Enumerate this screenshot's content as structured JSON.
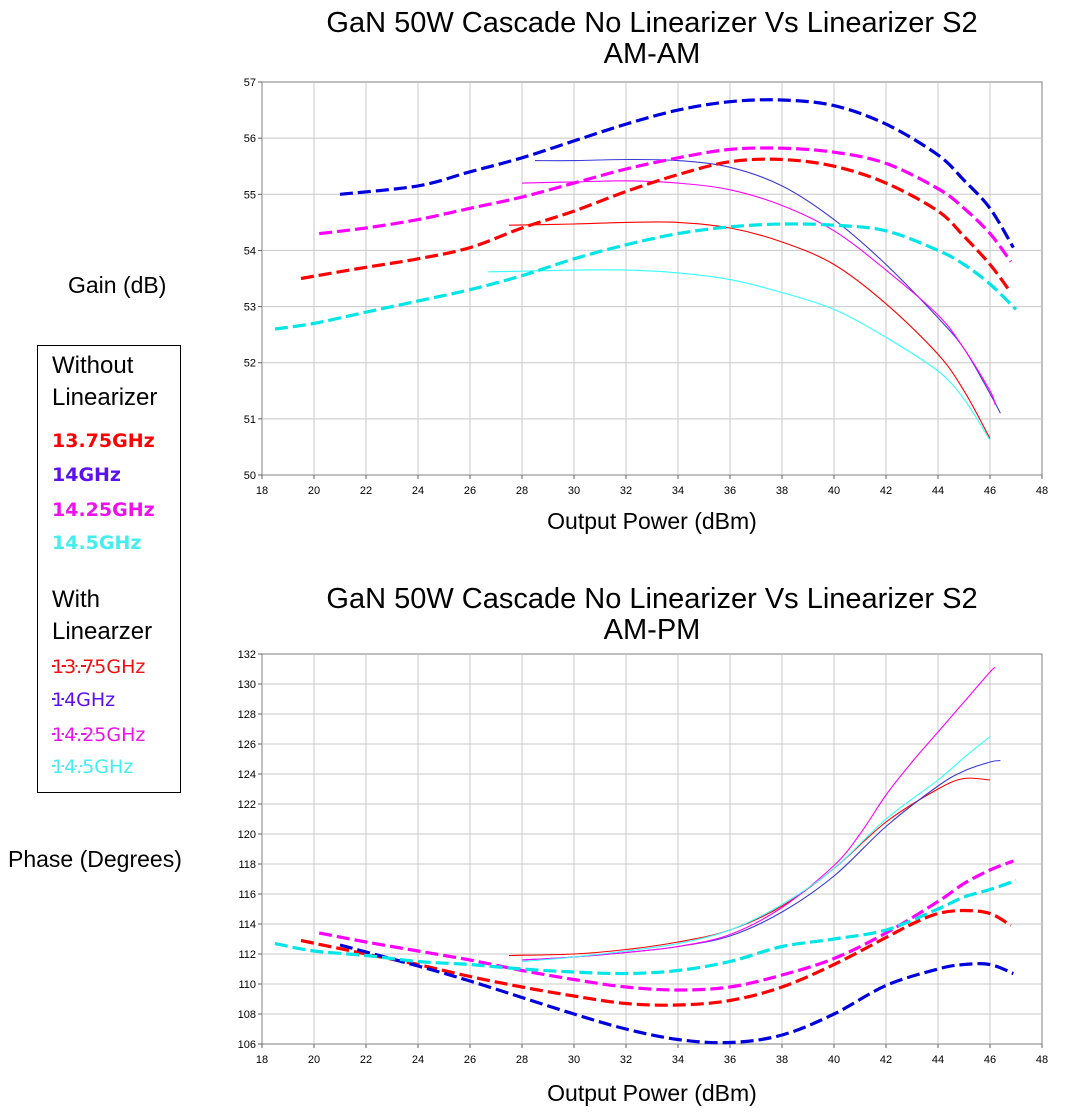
{
  "chart_data": [
    {
      "type": "line",
      "title": "GaN 50W Cascade No Linearizer Vs Linearizer S2",
      "subtitle": "AM-AM",
      "xlabel": "Output Power (dBm)",
      "ylabel": "Gain (dB)",
      "xlim": [
        18,
        48
      ],
      "ylim": [
        50,
        57
      ],
      "xticks": [
        18,
        20,
        22,
        24,
        26,
        28,
        30,
        32,
        34,
        36,
        38,
        40,
        42,
        44,
        46,
        48
      ],
      "yticks": [
        50,
        51,
        52,
        53,
        54,
        55,
        56,
        57
      ],
      "grid": true,
      "series": [
        {
          "name": "13.75GHz",
          "group": "Without Linearizer",
          "style": "solid",
          "color": "#ff0000",
          "x": [
            27.5,
            30,
            32,
            34,
            36,
            38,
            40,
            42,
            44,
            45,
            46
          ],
          "y": [
            54.45,
            54.47,
            54.5,
            54.5,
            54.4,
            54.15,
            53.75,
            53.05,
            52.15,
            51.5,
            50.65
          ]
        },
        {
          "name": "14GHz",
          "group": "Without Linearizer",
          "style": "solid",
          "color": "#3b3bd6",
          "x": [
            28.5,
            30,
            32,
            34,
            36,
            38,
            40,
            42,
            44,
            45,
            46,
            46.4
          ],
          "y": [
            55.6,
            55.6,
            55.62,
            55.6,
            55.48,
            55.15,
            54.55,
            53.75,
            52.8,
            52.25,
            51.45,
            51.1
          ]
        },
        {
          "name": "14.25GHz",
          "group": "Without Linearizer",
          "style": "solid",
          "color": "#ff00ff",
          "x": [
            28,
            30,
            32,
            34,
            36,
            38,
            40,
            42,
            44,
            45,
            46,
            46.2
          ],
          "y": [
            55.2,
            55.22,
            55.24,
            55.2,
            55.08,
            54.8,
            54.35,
            53.65,
            52.85,
            52.25,
            51.5,
            51.25
          ]
        },
        {
          "name": "14.5GHz",
          "group": "Without Linearizer",
          "style": "solid",
          "color": "#33ffff",
          "x": [
            26.7,
            28,
            30,
            32,
            34,
            36,
            38,
            40,
            42,
            44,
            45,
            46
          ],
          "y": [
            53.62,
            53.63,
            53.65,
            53.65,
            53.6,
            53.48,
            53.25,
            52.95,
            52.45,
            51.85,
            51.35,
            50.62
          ]
        },
        {
          "name": "13.75GHz",
          "group": "With Linearzer",
          "style": "dashed",
          "color": "#ff0000",
          "x": [
            19.5,
            22,
            24,
            26,
            28,
            30,
            32,
            34,
            36,
            38,
            40,
            42,
            44,
            45,
            46,
            46.8
          ],
          "y": [
            53.5,
            53.7,
            53.85,
            54.05,
            54.4,
            54.7,
            55.05,
            55.35,
            55.58,
            55.62,
            55.5,
            55.2,
            54.7,
            54.25,
            53.75,
            53.25
          ]
        },
        {
          "name": "14GHz",
          "group": "With Linearzer",
          "style": "dashed",
          "color": "#0000dd",
          "x": [
            21,
            24,
            26,
            28,
            30,
            32,
            34,
            36,
            38,
            40,
            42,
            44,
            45,
            46,
            46.9
          ],
          "y": [
            55.0,
            55.15,
            55.4,
            55.65,
            55.95,
            56.25,
            56.5,
            56.65,
            56.68,
            56.58,
            56.25,
            55.7,
            55.25,
            54.75,
            54.05
          ]
        },
        {
          "name": "14.25GHz",
          "group": "With Linearzer",
          "style": "dashed",
          "color": "#ff00ff",
          "x": [
            20.2,
            22,
            24,
            26,
            28,
            30,
            32,
            34,
            36,
            38,
            40,
            42,
            44,
            45,
            46,
            46.8
          ],
          "y": [
            54.3,
            54.4,
            54.55,
            54.75,
            54.95,
            55.2,
            55.45,
            55.65,
            55.8,
            55.82,
            55.75,
            55.55,
            55.1,
            54.75,
            54.3,
            53.8
          ]
        },
        {
          "name": "14.5GHz",
          "group": "With Linearzer",
          "style": "dashed",
          "color": "#00e5e5",
          "x": [
            18.5,
            20,
            22,
            24,
            26,
            28,
            30,
            32,
            34,
            36,
            38,
            40,
            42,
            44,
            45,
            46,
            47
          ],
          "y": [
            52.6,
            52.7,
            52.9,
            53.1,
            53.3,
            53.55,
            53.85,
            54.1,
            54.3,
            54.42,
            54.47,
            54.45,
            54.35,
            54.0,
            53.75,
            53.4,
            52.95
          ]
        }
      ]
    },
    {
      "type": "line",
      "title": "GaN 50W Cascade No Linearizer Vs Linearizer S2",
      "subtitle": "AM-PM",
      "xlabel": "Output Power (dBm)",
      "ylabel": "Phase (Degrees)",
      "xlim": [
        18,
        48
      ],
      "ylim": [
        106,
        132
      ],
      "xticks": [
        18,
        20,
        22,
        24,
        26,
        28,
        30,
        32,
        34,
        36,
        38,
        40,
        42,
        44,
        46,
        48
      ],
      "yticks": [
        106,
        108,
        110,
        112,
        114,
        116,
        118,
        120,
        122,
        124,
        126,
        128,
        130,
        132
      ],
      "grid": true,
      "series": [
        {
          "name": "13.75GHz",
          "group": "Without Linearizer",
          "style": "solid",
          "color": "#ff0000",
          "x": [
            27.5,
            30,
            32,
            34,
            36,
            38,
            40,
            42,
            44,
            45,
            46
          ],
          "y": [
            111.9,
            112.0,
            112.3,
            112.8,
            113.6,
            115.2,
            117.7,
            120.8,
            123.0,
            123.7,
            123.6
          ]
        },
        {
          "name": "14GHz",
          "group": "Without Linearizer",
          "style": "solid",
          "color": "#3b3bd6",
          "x": [
            28,
            30,
            32,
            34,
            36,
            38,
            40,
            42,
            44,
            45,
            46,
            46.4
          ],
          "y": [
            111.6,
            111.8,
            112.1,
            112.5,
            113.2,
            114.8,
            117.2,
            120.5,
            123.2,
            124.2,
            124.8,
            124.9
          ]
        },
        {
          "name": "14.25GHz",
          "group": "Without Linearizer",
          "style": "solid",
          "color": "#ff00ff",
          "x": [
            28,
            30,
            32,
            34,
            36,
            38,
            40,
            41,
            42,
            43,
            44,
            45,
            46,
            46.2
          ],
          "y": [
            111.6,
            111.8,
            112.1,
            112.5,
            113.3,
            115.1,
            117.9,
            120.0,
            122.6,
            124.8,
            126.8,
            128.8,
            130.8,
            131.1
          ]
        },
        {
          "name": "14.5GHz",
          "group": "Without Linearizer",
          "style": "solid",
          "color": "#33ffff",
          "x": [
            28,
            30,
            32,
            34,
            36,
            38,
            40,
            42,
            44,
            45,
            46
          ],
          "y": [
            111.5,
            111.8,
            112.2,
            112.7,
            113.6,
            115.3,
            117.7,
            121.0,
            123.6,
            125.1,
            126.5
          ]
        },
        {
          "name": "13.75GHz",
          "group": "With Linearzer",
          "style": "dashed",
          "color": "#ff0000",
          "x": [
            19.5,
            22,
            24,
            26,
            28,
            30,
            32,
            34,
            36,
            38,
            40,
            42,
            43,
            44,
            45,
            46,
            46.8
          ],
          "y": [
            112.9,
            112.0,
            111.3,
            110.5,
            109.8,
            109.2,
            108.7,
            108.6,
            108.9,
            109.8,
            111.3,
            113.1,
            114.0,
            114.7,
            114.9,
            114.7,
            113.9
          ]
        },
        {
          "name": "14GHz",
          "group": "With Linearzer",
          "style": "dashed",
          "color": "#0000dd",
          "x": [
            21,
            24,
            26,
            28,
            30,
            32,
            34,
            36,
            38,
            40,
            42,
            44,
            45,
            46,
            46.9
          ],
          "y": [
            112.6,
            111.2,
            110.2,
            109.1,
            108.0,
            107.0,
            106.3,
            106.1,
            106.6,
            108.0,
            109.9,
            111.0,
            111.3,
            111.3,
            110.7
          ]
        },
        {
          "name": "14.25GHz",
          "group": "With Linearzer",
          "style": "dashed",
          "color": "#ff00ff",
          "x": [
            20.2,
            22,
            24,
            26,
            28,
            30,
            32,
            34,
            36,
            38,
            40,
            42,
            44,
            45,
            46,
            46.9
          ],
          "y": [
            113.4,
            112.8,
            112.2,
            111.6,
            110.9,
            110.3,
            109.8,
            109.6,
            109.8,
            110.6,
            111.7,
            113.4,
            115.5,
            116.7,
            117.6,
            118.2
          ]
        },
        {
          "name": "14.5GHz",
          "group": "With Linearzer",
          "style": "dashed",
          "color": "#00e5e5",
          "x": [
            18.5,
            20,
            22,
            24,
            26,
            28,
            30,
            32,
            34,
            36,
            38,
            40,
            42,
            44,
            45,
            46,
            47
          ],
          "y": [
            112.7,
            112.2,
            111.9,
            111.5,
            111.3,
            111.0,
            110.8,
            110.7,
            110.9,
            111.5,
            112.5,
            113.0,
            113.6,
            115.0,
            115.8,
            116.3,
            116.9
          ]
        }
      ]
    }
  ],
  "legend": {
    "heading_without": [
      "Without",
      "Linearizer"
    ],
    "heading_with": [
      "With",
      "Linearzer"
    ],
    "items_without": [
      {
        "label": "13.75GHz",
        "color": "#ff0000"
      },
      {
        "label": "14GHz",
        "color": "#5b10ee"
      },
      {
        "label": "14.25GHz",
        "color": "#ee11ee"
      },
      {
        "label": "14.5GHz",
        "color": "#44eeee"
      }
    ],
    "items_with": [
      {
        "label": "13.75GHz",
        "color": "#ee1111"
      },
      {
        "label": "14GHz",
        "color": "#5b10ee"
      },
      {
        "label": "14.25GHz",
        "color": "#ee11ee"
      },
      {
        "label": "14.5GHz",
        "color": "#44eeee"
      }
    ]
  }
}
